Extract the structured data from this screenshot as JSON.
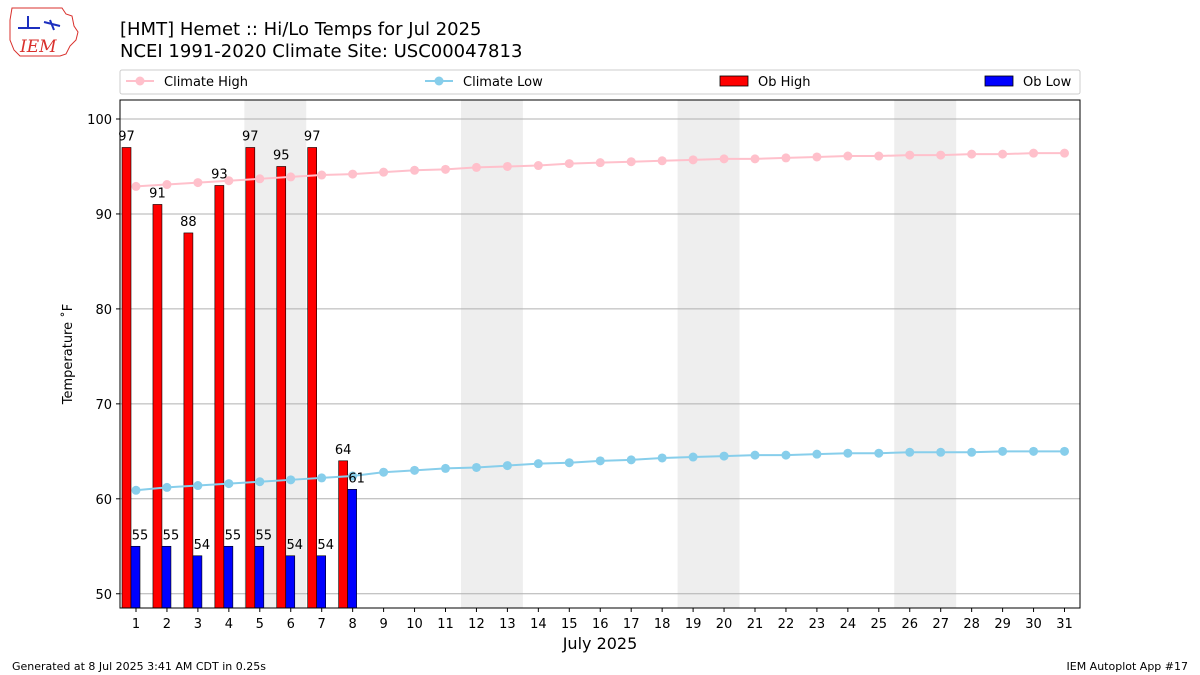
{
  "title": "[HMT] Hemet :: Hi/Lo Temps for Jul 2025",
  "subtitle": "NCEI 1991-2020 Climate Site: USC00047813",
  "logo_text": "IEM",
  "footer_left": "Generated at 8 Jul 2025 3:41 AM CDT in 0.25s",
  "footer_right": "IEM Autoplot App #17",
  "colors": {
    "climate_high": "#ffc0cb",
    "climate_low": "#87ceeb",
    "ob_high": "#ff0000",
    "ob_low": "#0000ff",
    "weekend_band": "#eeeeee",
    "grid": "#b0b0b0"
  },
  "chart_data": {
    "type": "bar",
    "xlabel": "July 2025",
    "ylabel": "Temperature ˚F",
    "ylim": [
      48.5,
      102
    ],
    "yticks": [
      50,
      60,
      70,
      80,
      90,
      100
    ],
    "grid": "horizontal",
    "legend_position": "top",
    "legend": [
      "Climate High",
      "Climate Low",
      "Ob High",
      "Ob Low"
    ],
    "days": [
      1,
      2,
      3,
      4,
      5,
      6,
      7,
      8,
      9,
      10,
      11,
      12,
      13,
      14,
      15,
      16,
      17,
      18,
      19,
      20,
      21,
      22,
      23,
      24,
      25,
      26,
      27,
      28,
      29,
      30,
      31
    ],
    "weekend_shading": [
      [
        5,
        6
      ],
      [
        12,
        13
      ],
      [
        19,
        20
      ],
      [
        26,
        27
      ]
    ],
    "ob_high": [
      97,
      91,
      88,
      93,
      97,
      95,
      97,
      64
    ],
    "ob_low": [
      55,
      55,
      54,
      55,
      55,
      54,
      54,
      61
    ],
    "climate_high": [
      92.9,
      93.1,
      93.3,
      93.5,
      93.7,
      93.9,
      94.1,
      94.2,
      94.4,
      94.6,
      94.7,
      94.9,
      95.0,
      95.1,
      95.3,
      95.4,
      95.5,
      95.6,
      95.7,
      95.8,
      95.8,
      95.9,
      96.0,
      96.1,
      96.1,
      96.2,
      96.2,
      96.3,
      96.3,
      96.4,
      96.4
    ],
    "climate_low": [
      60.9,
      61.2,
      61.4,
      61.6,
      61.8,
      62.0,
      62.2,
      62.4,
      62.8,
      63.0,
      63.2,
      63.3,
      63.5,
      63.7,
      63.8,
      64.0,
      64.1,
      64.3,
      64.4,
      64.5,
      64.6,
      64.6,
      64.7,
      64.8,
      64.8,
      64.9,
      64.9,
      64.9,
      65.0,
      65.0,
      65.0
    ]
  }
}
